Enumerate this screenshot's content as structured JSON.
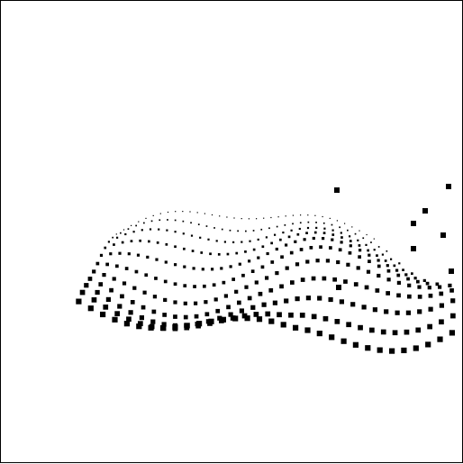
{
  "canvas": {
    "background": "#ffffff",
    "border_color": "#000000",
    "point_color": "#000000"
  },
  "chart_data": {
    "type": "scatter",
    "description_kind": "3d-point-cloud-projection",
    "marker": "square",
    "series": [
      {
        "values": []
      }
    ]
  }
}
